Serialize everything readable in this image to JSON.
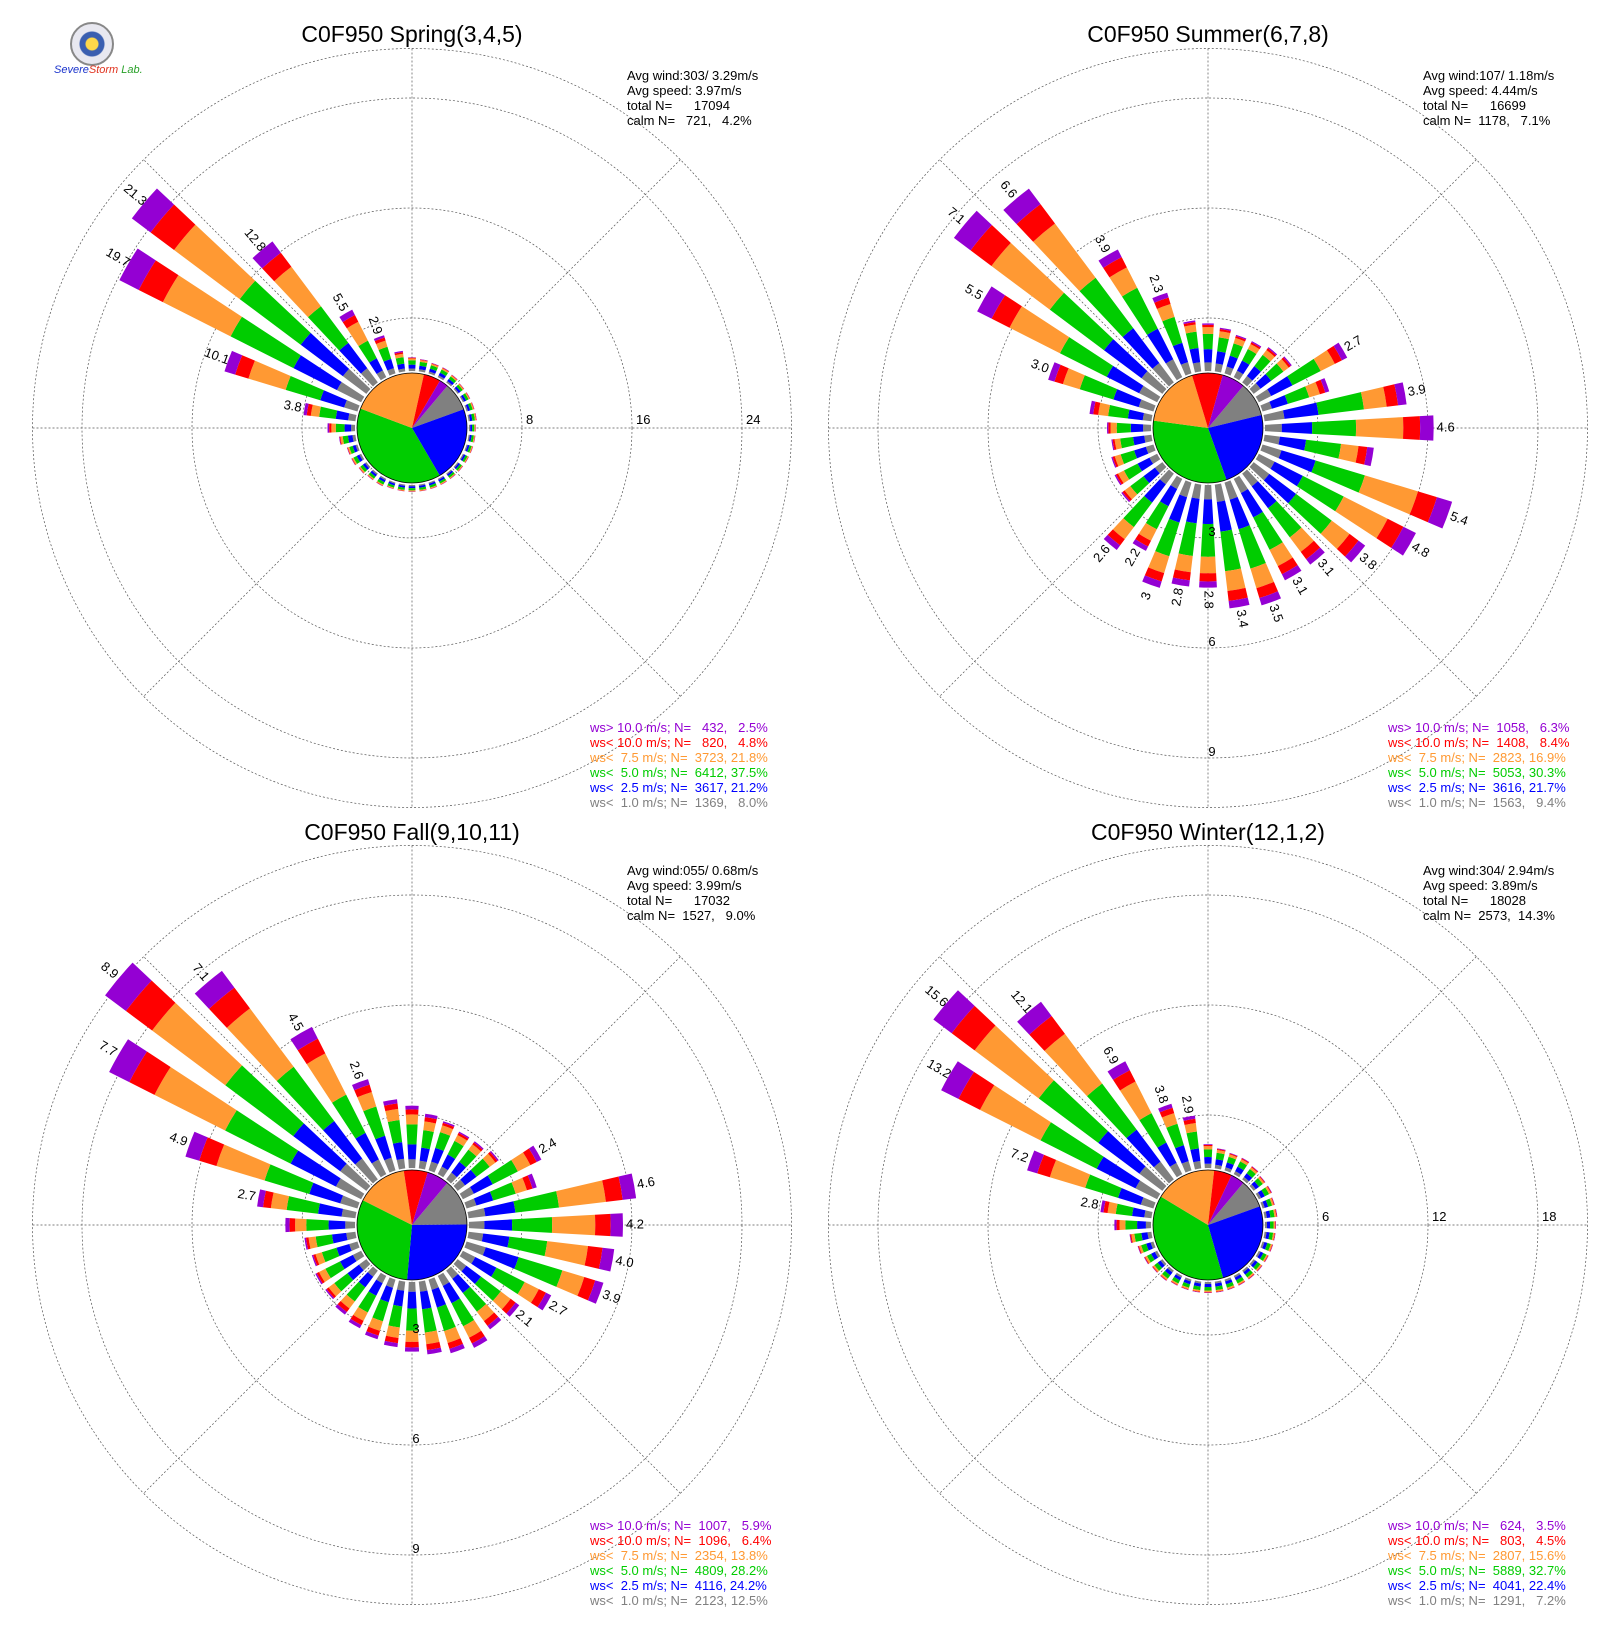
{
  "logo": {
    "part1": "Severe",
    "part2": "Storm",
    "part3": "Lab."
  },
  "colors": {
    "gt10": "#9400d3",
    "lt10": "#ff0000",
    "lt7_5": "#ff9933",
    "lt5": "#00cc00",
    "lt2_5": "#0000ff",
    "lt1": "#808080"
  },
  "chart_data": [
    {
      "type": "windrose",
      "title": "C0F950 Spring(3,4,5)",
      "stats": [
        "Avg wind:303/ 3.29m/s",
        "Avg speed: 3.97m/s",
        "total N=      17094",
        "calm N=   721,   4.2%"
      ],
      "ring_labels": [
        "8",
        "16",
        "24"
      ],
      "rmax": 24,
      "legend": [
        {
          "label": "ws> 10.0 m/s; N=   432,   2.5%",
          "color": "#9400d3"
        },
        {
          "label": "ws< 10.0 m/s; N=   820,   4.8%",
          "color": "#ff0000"
        },
        {
          "label": "ws<  7.5 m/s; N=  3723, 21.8%",
          "color": "#ff9933"
        },
        {
          "label": "ws<  5.0 m/s; N=  6412, 37.5%",
          "color": "#00cc00"
        },
        {
          "label": "ws<  2.5 m/s; N=  3617, 21.2%",
          "color": "#0000ff"
        },
        {
          "label": "ws<  1.0 m/s; N=  1369,   8.0%",
          "color": "#808080"
        }
      ],
      "pie": [
        8.0,
        21.2,
        37.5,
        21.8,
        4.8,
        2.5
      ],
      "sectors": [
        {
          "dir": 0,
          "total": 1.0
        },
        {
          "dir": 10,
          "total": 0.9
        },
        {
          "dir": 20,
          "total": 0.8
        },
        {
          "dir": 30,
          "total": 0.8
        },
        {
          "dir": 40,
          "total": 0.7
        },
        {
          "dir": 50,
          "total": 0.6
        },
        {
          "dir": 60,
          "total": 0.6
        },
        {
          "dir": 70,
          "total": 0.6
        },
        {
          "dir": 80,
          "total": 0.6
        },
        {
          "dir": 90,
          "total": 0.5
        },
        {
          "dir": 100,
          "total": 0.5
        },
        {
          "dir": 110,
          "total": 0.5
        },
        {
          "dir": 120,
          "total": 0.5
        },
        {
          "dir": 130,
          "total": 0.5
        },
        {
          "dir": 140,
          "total": 0.5
        },
        {
          "dir": 150,
          "total": 0.5
        },
        {
          "dir": 160,
          "total": 0.5
        },
        {
          "dir": 170,
          "total": 0.5
        },
        {
          "dir": 180,
          "total": 0.5
        },
        {
          "dir": 190,
          "total": 0.5
        },
        {
          "dir": 200,
          "total": 0.5
        },
        {
          "dir": 210,
          "total": 0.6
        },
        {
          "dir": 220,
          "total": 0.6
        },
        {
          "dir": 230,
          "total": 0.7
        },
        {
          "dir": 240,
          "total": 0.8
        },
        {
          "dir": 250,
          "total": 0.8
        },
        {
          "dir": 260,
          "total": 1.2
        },
        {
          "dir": 270,
          "total": 2.0
        },
        {
          "dir": 280,
          "total": 3.8,
          "label": "3.8"
        },
        {
          "dir": 290,
          "total": 10.1,
          "label": "10.1"
        },
        {
          "dir": 300,
          "total": 19.7,
          "label": "19.7"
        },
        {
          "dir": 310,
          "total": 21.3,
          "label": "21.3"
        },
        {
          "dir": 320,
          "total": 12.8,
          "label": "12.8"
        },
        {
          "dir": 330,
          "total": 5.5,
          "label": "5.5"
        },
        {
          "dir": 340,
          "total": 2.9,
          "label": "2.9"
        },
        {
          "dir": 350,
          "total": 1.5
        }
      ]
    },
    {
      "type": "windrose",
      "title": "C0F950 Summer(6,7,8)",
      "stats": [
        "Avg wind:107/ 1.18m/s",
        "Avg speed: 4.44m/s",
        "total N=      16699",
        "calm N=  1178,   7.1%"
      ],
      "ring_labels": [
        "3",
        "6",
        "9"
      ],
      "rmax": 9,
      "legend": [
        {
          "label": "ws> 10.0 m/s; N=  1058,   6.3%",
          "color": "#9400d3"
        },
        {
          "label": "ws< 10.0 m/s; N=  1408,   8.4%",
          "color": "#ff0000"
        },
        {
          "label": "ws<  7.5 m/s; N=  2823, 16.9%",
          "color": "#ff9933"
        },
        {
          "label": "ws<  5.0 m/s; N=  5053, 30.3%",
          "color": "#00cc00"
        },
        {
          "label": "ws<  2.5 m/s; N=  3616, 21.7%",
          "color": "#0000ff"
        },
        {
          "label": "ws<  1.0 m/s; N=  1563,   9.4%",
          "color": "#808080"
        }
      ],
      "pie": [
        9.4,
        21.7,
        30.3,
        16.9,
        8.4,
        6.3
      ],
      "sectors": [
        {
          "dir": 0,
          "total": 1.3
        },
        {
          "dir": 10,
          "total": 1.2
        },
        {
          "dir": 20,
          "total": 1.1
        },
        {
          "dir": 30,
          "total": 1.1
        },
        {
          "dir": 40,
          "total": 1.2
        },
        {
          "dir": 50,
          "total": 1.3
        },
        {
          "dir": 60,
          "total": 2.7,
          "label": "2.7"
        },
        {
          "dir": 70,
          "total": 1.9
        },
        {
          "dir": 80,
          "total": 3.9,
          "label": "3.9"
        },
        {
          "dir": 90,
          "total": 4.6,
          "label": "4.6"
        },
        {
          "dir": 100,
          "total": 3.0
        },
        {
          "dir": 110,
          "total": 5.4,
          "label": "5.4"
        },
        {
          "dir": 120,
          "total": 4.8,
          "label": "4.8"
        },
        {
          "dir": 130,
          "total": 3.8,
          "label": "3.8"
        },
        {
          "dir": 140,
          "total": 3.1,
          "label": "3.1"
        },
        {
          "dir": 150,
          "total": 3.1,
          "label": "3.1"
        },
        {
          "dir": 160,
          "total": 3.5,
          "label": "3.5"
        },
        {
          "dir": 170,
          "total": 3.4,
          "label": "3.4"
        },
        {
          "dir": 180,
          "total": 2.8,
          "label": "2.8"
        },
        {
          "dir": 190,
          "total": 2.8,
          "label": "2.8"
        },
        {
          "dir": 200,
          "total": 3.0,
          "label": "3"
        },
        {
          "dir": 210,
          "total": 2.2,
          "label": "2.2"
        },
        {
          "dir": 220,
          "total": 2.6,
          "label": "2.6"
        },
        {
          "dir": 230,
          "total": 1.4
        },
        {
          "dir": 240,
          "total": 1.3
        },
        {
          "dir": 250,
          "total": 1.2
        },
        {
          "dir": 260,
          "total": 1.1
        },
        {
          "dir": 270,
          "total": 1.2
        },
        {
          "dir": 280,
          "total": 1.7
        },
        {
          "dir": 290,
          "total": 3.0,
          "label": "3.0"
        },
        {
          "dir": 300,
          "total": 5.5,
          "label": "5.5"
        },
        {
          "dir": 310,
          "total": 7.1,
          "label": "7.1"
        },
        {
          "dir": 320,
          "total": 6.6,
          "label": "6.6"
        },
        {
          "dir": 330,
          "total": 3.9,
          "label": "3.9"
        },
        {
          "dir": 340,
          "total": 2.3,
          "label": "2.3"
        },
        {
          "dir": 350,
          "total": 1.4
        }
      ]
    },
    {
      "type": "windrose",
      "title": "C0F950 Fall(9,10,11)",
      "stats": [
        "Avg wind:055/ 0.68m/s",
        "Avg speed: 3.99m/s",
        "total N=      17032",
        "calm N=  1527,   9.0%"
      ],
      "ring_labels": [
        "3",
        "6",
        "9"
      ],
      "rmax": 9,
      "legend": [
        {
          "label": "ws> 10.0 m/s; N=  1007,   5.9%",
          "color": "#9400d3"
        },
        {
          "label": "ws< 10.0 m/s; N=  1096,   6.4%",
          "color": "#ff0000"
        },
        {
          "label": "ws<  7.5 m/s; N=  2354, 13.8%",
          "color": "#ff9933"
        },
        {
          "label": "ws<  5.0 m/s; N=  4809, 28.2%",
          "color": "#00cc00"
        },
        {
          "label": "ws<  2.5 m/s; N=  4116, 24.2%",
          "color": "#0000ff"
        },
        {
          "label": "ws<  1.0 m/s; N=  2123, 12.5%",
          "color": "#808080"
        }
      ],
      "pie": [
        12.5,
        24.2,
        28.2,
        13.8,
        6.4,
        5.9
      ],
      "sectors": [
        {
          "dir": 0,
          "total": 1.7
        },
        {
          "dir": 10,
          "total": 1.5
        },
        {
          "dir": 20,
          "total": 1.4
        },
        {
          "dir": 30,
          "total": 1.3
        },
        {
          "dir": 40,
          "total": 1.3
        },
        {
          "dir": 50,
          "total": 1.4
        },
        {
          "dir": 60,
          "total": 2.4,
          "label": "2.4"
        },
        {
          "dir": 70,
          "total": 2.0
        },
        {
          "dir": 80,
          "total": 4.6,
          "label": "4.6"
        },
        {
          "dir": 90,
          "total": 4.2,
          "label": "4.2"
        },
        {
          "dir": 100,
          "total": 4.0,
          "label": "4.0"
        },
        {
          "dir": 110,
          "total": 3.9,
          "label": "3.9"
        },
        {
          "dir": 120,
          "total": 2.7,
          "label": "2.7"
        },
        {
          "dir": 130,
          "total": 2.1,
          "label": "2.1"
        },
        {
          "dir": 140,
          "total": 2.0
        },
        {
          "dir": 150,
          "total": 2.2
        },
        {
          "dir": 160,
          "total": 2.1
        },
        {
          "dir": 170,
          "total": 2.0
        },
        {
          "dir": 180,
          "total": 1.9
        },
        {
          "dir": 190,
          "total": 1.8
        },
        {
          "dir": 200,
          "total": 1.7
        },
        {
          "dir": 210,
          "total": 1.6
        },
        {
          "dir": 220,
          "total": 1.5
        },
        {
          "dir": 230,
          "total": 1.4
        },
        {
          "dir": 240,
          "total": 1.4
        },
        {
          "dir": 250,
          "total": 1.3
        },
        {
          "dir": 260,
          "total": 1.4
        },
        {
          "dir": 270,
          "total": 1.9
        },
        {
          "dir": 280,
          "total": 2.7,
          "label": "2.7"
        },
        {
          "dir": 290,
          "total": 4.9,
          "label": "4.9"
        },
        {
          "dir": 300,
          "total": 7.7,
          "label": "7.7"
        },
        {
          "dir": 310,
          "total": 8.9,
          "label": "8.9"
        },
        {
          "dir": 320,
          "total": 7.1,
          "label": "7.1"
        },
        {
          "dir": 330,
          "total": 4.5,
          "label": "4.5"
        },
        {
          "dir": 340,
          "total": 2.6,
          "label": "2.6"
        },
        {
          "dir": 350,
          "total": 1.9
        }
      ]
    },
    {
      "type": "windrose",
      "title": "C0F950 Winter(12,1,2)",
      "stats": [
        "Avg wind:304/ 2.94m/s",
        "Avg speed: 3.89m/s",
        "total N=      18028",
        "calm N=  2573,  14.3%"
      ],
      "ring_labels": [
        "6",
        "12",
        "18"
      ],
      "rmax": 18,
      "legend": [
        {
          "label": "ws> 10.0 m/s; N=   624,   3.5%",
          "color": "#9400d3"
        },
        {
          "label": "ws< 10.0 m/s; N=   803,   4.5%",
          "color": "#ff0000"
        },
        {
          "label": "ws<  7.5 m/s; N=  2807, 15.6%",
          "color": "#ff9933"
        },
        {
          "label": "ws<  5.0 m/s; N=  5889, 32.7%",
          "color": "#00cc00"
        },
        {
          "label": "ws<  2.5 m/s; N=  4041, 22.4%",
          "color": "#0000ff"
        },
        {
          "label": "ws<  1.0 m/s; N=  1291,   7.2%",
          "color": "#808080"
        }
      ],
      "pie": [
        7.2,
        22.4,
        32.7,
        15.6,
        4.5,
        3.5
      ],
      "sectors": [
        {
          "dir": 0,
          "total": 1.3
        },
        {
          "dir": 10,
          "total": 1.1
        },
        {
          "dir": 20,
          "total": 1.0
        },
        {
          "dir": 30,
          "total": 1.0
        },
        {
          "dir": 40,
          "total": 0.9
        },
        {
          "dir": 50,
          "total": 0.8
        },
        {
          "dir": 60,
          "total": 0.8
        },
        {
          "dir": 70,
          "total": 0.7
        },
        {
          "dir": 80,
          "total": 0.7
        },
        {
          "dir": 90,
          "total": 0.6
        },
        {
          "dir": 100,
          "total": 0.6
        },
        {
          "dir": 110,
          "total": 0.6
        },
        {
          "dir": 120,
          "total": 0.6
        },
        {
          "dir": 130,
          "total": 0.6
        },
        {
          "dir": 140,
          "total": 0.6
        },
        {
          "dir": 150,
          "total": 0.6
        },
        {
          "dir": 160,
          "total": 0.6
        },
        {
          "dir": 170,
          "total": 0.6
        },
        {
          "dir": 180,
          "total": 0.6
        },
        {
          "dir": 190,
          "total": 0.6
        },
        {
          "dir": 200,
          "total": 0.6
        },
        {
          "dir": 210,
          "total": 0.6
        },
        {
          "dir": 220,
          "total": 0.7
        },
        {
          "dir": 230,
          "total": 0.7
        },
        {
          "dir": 240,
          "total": 0.8
        },
        {
          "dir": 250,
          "total": 0.9
        },
        {
          "dir": 260,
          "total": 1.2
        },
        {
          "dir": 270,
          "total": 2.0
        },
        {
          "dir": 280,
          "total": 2.8,
          "label": "2.8"
        },
        {
          "dir": 290,
          "total": 7.2,
          "label": "7.2"
        },
        {
          "dir": 300,
          "total": 13.2,
          "label": "13.2"
        },
        {
          "dir": 310,
          "total": 15.6,
          "label": "15.6"
        },
        {
          "dir": 320,
          "total": 12.1,
          "label": "12.1"
        },
        {
          "dir": 330,
          "total": 6.9,
          "label": "6.9"
        },
        {
          "dir": 340,
          "total": 3.8,
          "label": "3.8"
        },
        {
          "dir": 350,
          "total": 2.9,
          "label": "2.9"
        }
      ]
    }
  ]
}
